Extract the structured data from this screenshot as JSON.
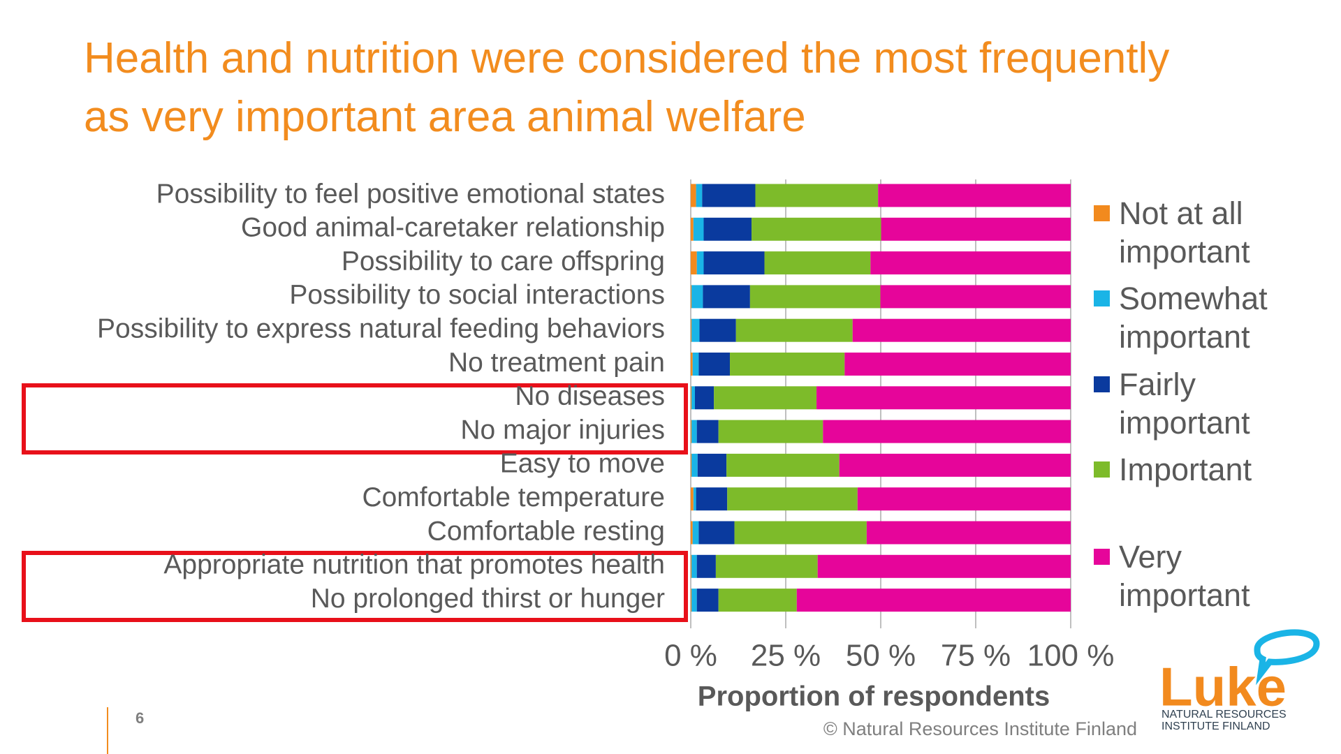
{
  "chart_data": {
    "type": "stacked-barh",
    "title": "Health and nutrition were considered the most frequently as very important area animal welfare",
    "x_label": "Proportion of respondents",
    "categories": [
      "Possibility to feel positive emotional states",
      "Good animal-caretaker relationship",
      "Possibility to care offspring",
      "Possibility to social interactions",
      "Possibility to express natural feeding behaviors",
      "No treatment pain",
      "No diseases",
      "No major injuries",
      "Easy to move",
      "Comfortable temperature",
      "Comfortable resting",
      "Appropriate nutrition that promotes health",
      "No prolonged thirst or hunger"
    ],
    "series": [
      {
        "name": "Not at all important",
        "color": "#f28a1e",
        "values": [
          1.4,
          0.7,
          1.6,
          0.2,
          0.2,
          0.5,
          0.2,
          0.2,
          0.2,
          0.7,
          0.5,
          0.2,
          0.2
        ]
      },
      {
        "name": "Somewhat important",
        "color": "#1ab4e6",
        "values": [
          1.6,
          2.7,
          1.8,
          3,
          2.1,
          1.6,
          0.9,
          1.4,
          1.6,
          0.7,
          1.6,
          1.4,
          1.4
        ]
      },
      {
        "name": "Fairly important",
        "color": "#0a3a9e",
        "values": [
          14,
          12.6,
          16,
          12.4,
          9.6,
          8.2,
          5,
          5.7,
          7.6,
          8.2,
          9.4,
          5,
          5.7
        ]
      },
      {
        "name": "Important",
        "color": "#7dbb2a",
        "values": [
          32.3,
          34.1,
          27.9,
          34.3,
          30.7,
          30.2,
          27,
          27.5,
          29.7,
          34.3,
          34.8,
          26.8,
          20.6
        ]
      },
      {
        "name": "Very important",
        "color": "#e6059a",
        "values": [
          50.7,
          49.9,
          52.7,
          50.1,
          57.4,
          59.5,
          66.9,
          65.2,
          60.9,
          56.1,
          53.7,
          66.6,
          72.1
        ]
      }
    ],
    "xlim": [
      0,
      100
    ],
    "xticks": [
      {
        "value": 0,
        "label": "0 %"
      },
      {
        "value": 25,
        "label": "25 %"
      },
      {
        "value": 50,
        "label": "50 %"
      },
      {
        "value": 75,
        "label": "75 %"
      },
      {
        "value": 100,
        "label": "100 %"
      }
    ],
    "grid": true,
    "legend": "right"
  },
  "slide_number": "6",
  "copyright": "© Natural Resources Institute Finland",
  "logo": {
    "name": "Luke",
    "line1": "NATURAL RESOURCES",
    "line2": "INSTITUTE FINLAND"
  }
}
